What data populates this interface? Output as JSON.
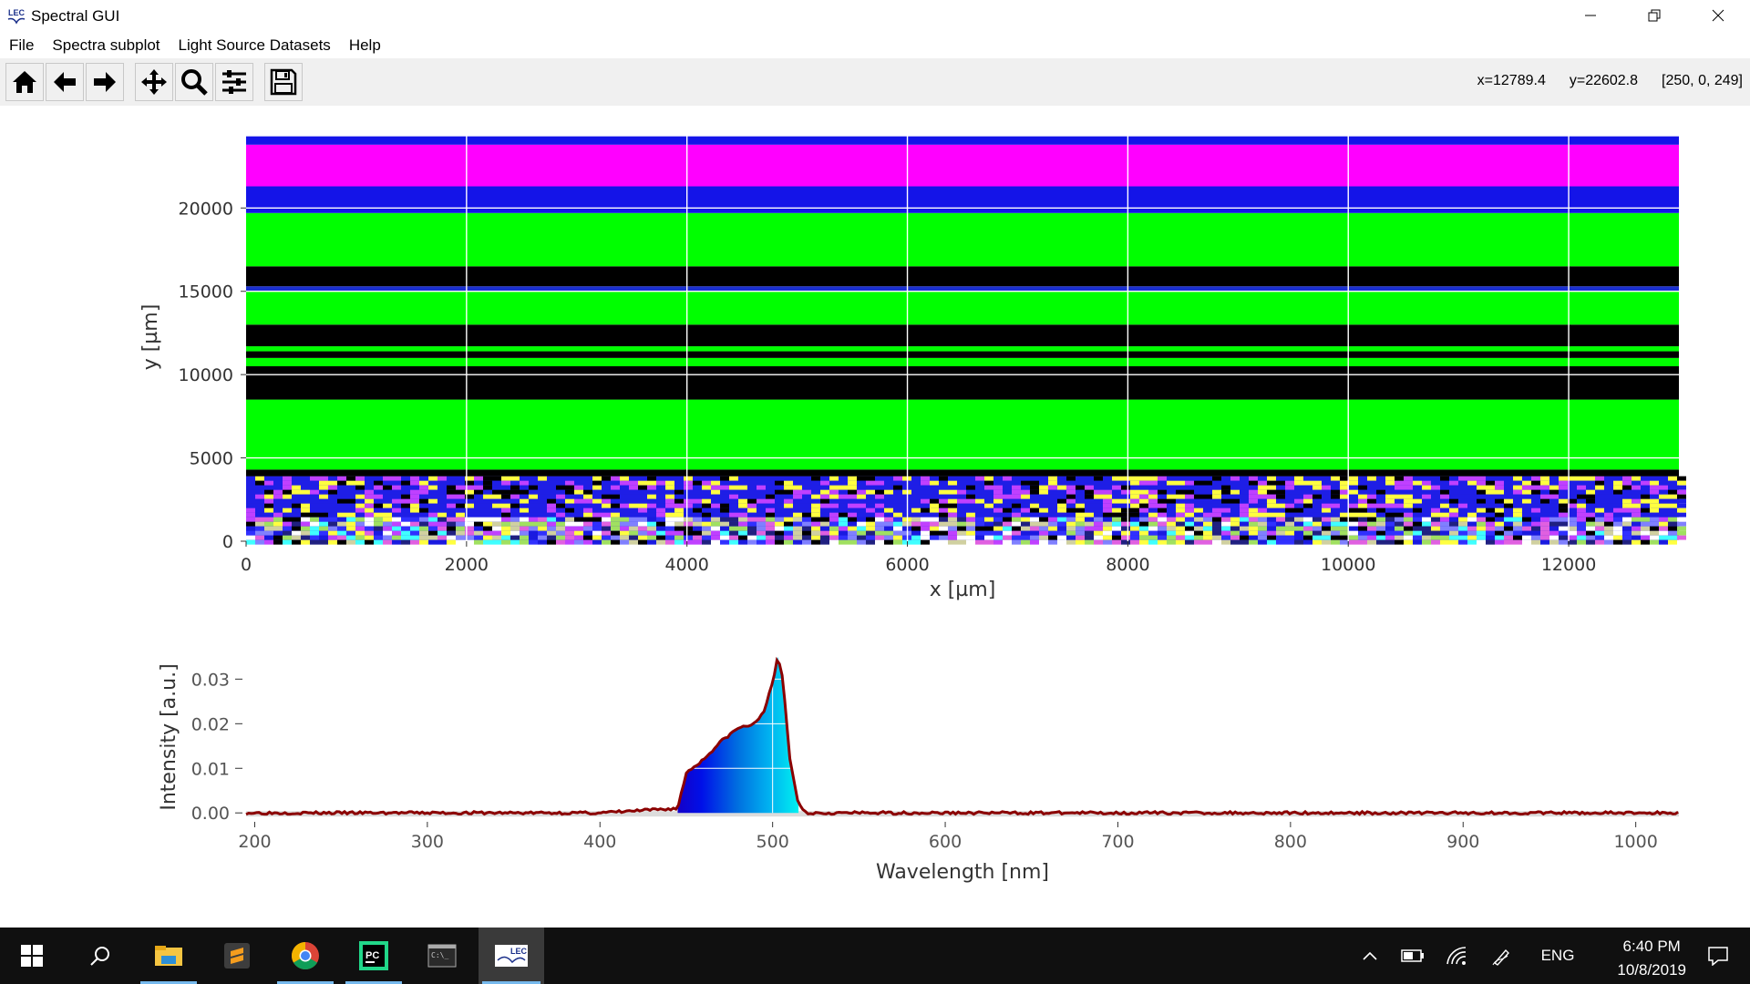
{
  "window": {
    "title": "Spectral GUI",
    "app_icon": "lec-icon"
  },
  "menu": {
    "items": [
      "File",
      "Spectra subplot",
      "Light Source Datasets",
      "Help"
    ]
  },
  "toolbar": {
    "buttons": [
      "home-icon",
      "back-icon",
      "forward-icon",
      "pan-icon",
      "zoom-icon",
      "configure-subplots-icon",
      "save-icon"
    ],
    "coord_x": "x=12789.4",
    "coord_y": "y=22602.8",
    "pixel_value": "[250, 0, 249]"
  },
  "chart_data": [
    {
      "type": "heatmap",
      "xlabel": "x [µm]",
      "ylabel": "y [µm]",
      "xlim": [
        0,
        13000
      ],
      "ylim": [
        0,
        24500
      ],
      "xticks": [
        "0",
        "2000",
        "4000",
        "6000",
        "8000",
        "10000",
        "12000"
      ],
      "yticks": [
        "0",
        "5000",
        "10000",
        "15000",
        "20000"
      ],
      "grid": true,
      "bands": [
        {
          "y0": 0,
          "y1": 3900,
          "color": "mixed-noise"
        },
        {
          "y0": 3900,
          "y1": 4300,
          "color": "#000000"
        },
        {
          "y0": 4300,
          "y1": 8500,
          "color": "#00ff00"
        },
        {
          "y0": 8500,
          "y1": 10500,
          "color": "#000000"
        },
        {
          "y0": 10500,
          "y1": 11000,
          "color": "#00ff00"
        },
        {
          "y0": 11000,
          "y1": 11400,
          "color": "#000000"
        },
        {
          "y0": 11400,
          "y1": 11700,
          "color": "#00ff00"
        },
        {
          "y0": 11700,
          "y1": 13000,
          "color": "#000000"
        },
        {
          "y0": 13000,
          "y1": 15000,
          "color": "#00ff00"
        },
        {
          "y0": 15000,
          "y1": 15300,
          "color": "#1a2fd0"
        },
        {
          "y0": 15300,
          "y1": 16500,
          "color": "#000000"
        },
        {
          "y0": 16500,
          "y1": 19700,
          "color": "#00ff00"
        },
        {
          "y0": 19700,
          "y1": 21300,
          "color": "#1414e8"
        },
        {
          "y0": 21300,
          "y1": 23800,
          "color": "#ff00ff"
        },
        {
          "y0": 23800,
          "y1": 24300,
          "color": "#1414e8"
        }
      ]
    },
    {
      "type": "line",
      "xlabel": "Wavelength [nm]",
      "ylabel": "Intensity [a.u.]",
      "xlim": [
        195,
        1025
      ],
      "ylim": [
        -0.002,
        0.036
      ],
      "xticks": [
        "200",
        "300",
        "400",
        "500",
        "600",
        "700",
        "800",
        "900",
        "1000"
      ],
      "yticks": [
        "0.00",
        "0.01",
        "0.02",
        "0.03"
      ],
      "line_color": "#8b0000",
      "x": [
        195,
        300,
        400,
        445,
        450,
        460,
        470,
        480,
        490,
        495,
        500,
        503,
        506,
        510,
        515,
        520,
        600,
        700,
        800,
        900,
        1025
      ],
      "y": [
        0.0,
        0.0,
        0.0,
        0.001,
        0.009,
        0.012,
        0.016,
        0.019,
        0.02,
        0.023,
        0.029,
        0.035,
        0.03,
        0.012,
        0.002,
        0.0,
        0.0,
        0.0,
        0.0,
        0.0,
        0.0
      ],
      "fill": "blue-to-cyan gradient under curve between 445 and 515 nm"
    }
  ],
  "taskbar": {
    "items": [
      "windows-start-icon",
      "search-icon",
      "file-explorer-icon",
      "sublime-text-icon",
      "chrome-icon",
      "pycharm-icon",
      "terminal-icon",
      "spectral-gui-icon"
    ],
    "tray_lang": "ENG",
    "time": "6:40 PM",
    "date": "10/8/2019"
  }
}
